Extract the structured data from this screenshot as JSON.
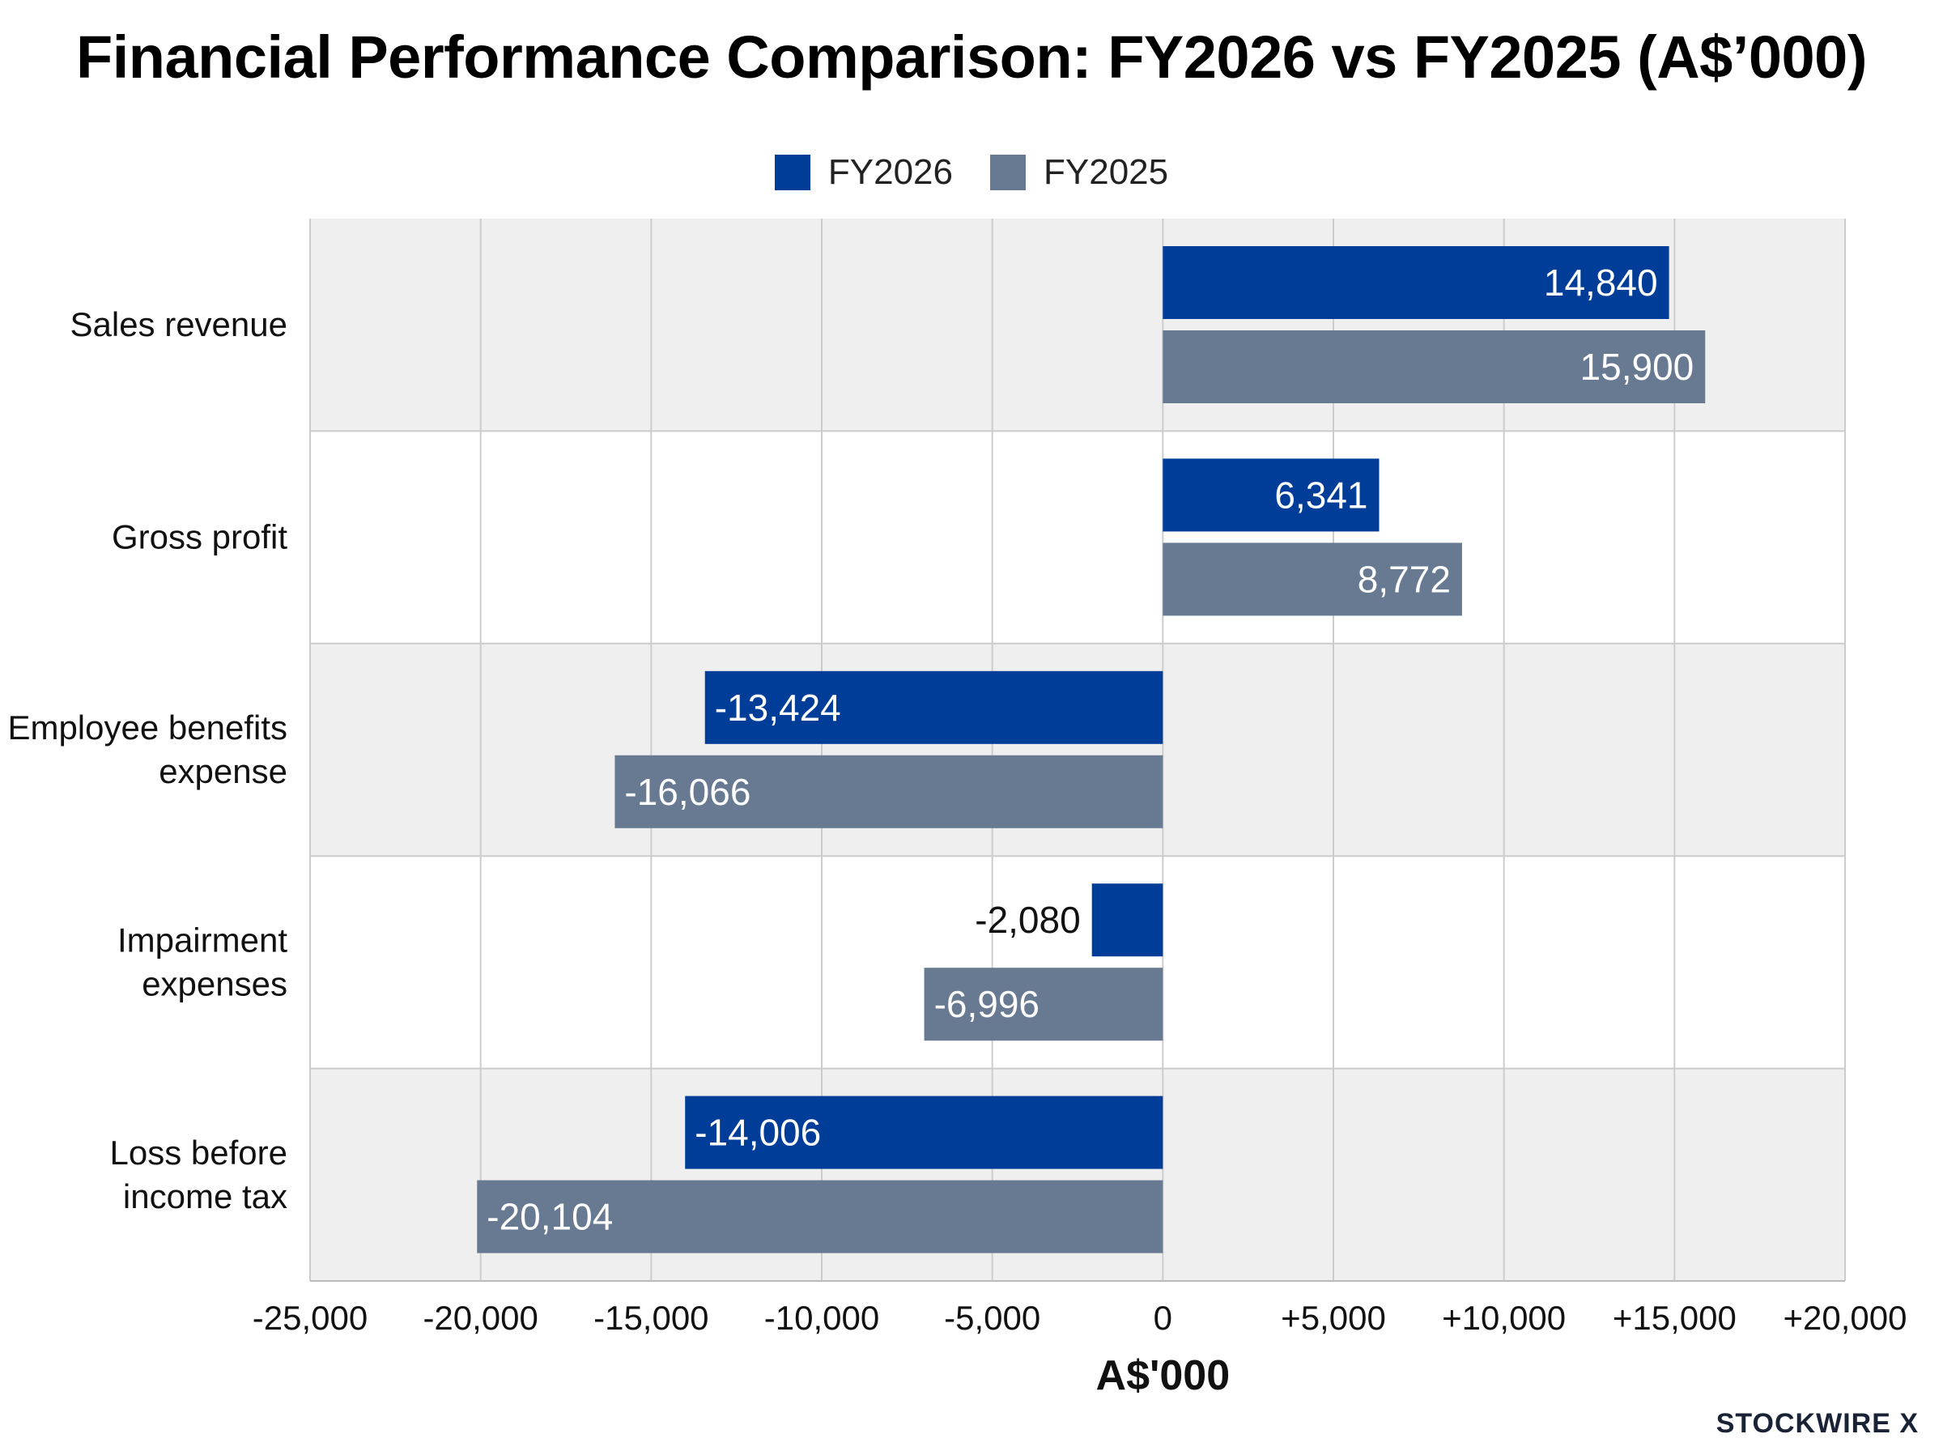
{
  "chart_data": {
    "type": "bar",
    "orientation": "horizontal",
    "title": "Financial Performance Comparison: FY2026 vs FY2025 (A$’000)",
    "xlabel": "A$'000",
    "ylabel": "",
    "xlim": [
      -25000,
      20000
    ],
    "x_ticks": [
      -25000,
      -20000,
      -15000,
      -10000,
      -5000,
      0,
      5000,
      10000,
      15000,
      20000
    ],
    "x_tick_labels": [
      "-25,000",
      "-20,000",
      "-15,000",
      "-10,000",
      "-5,000",
      "0",
      "+5,000",
      "+10,000",
      "+15,000",
      "+20,000"
    ],
    "categories": [
      [
        "Sales revenue"
      ],
      [
        "Gross profit"
      ],
      [
        "Employee benefits",
        "expense"
      ],
      [
        "Impairment",
        "expenses"
      ],
      [
        "Loss before",
        "income tax"
      ]
    ],
    "series": [
      {
        "name": "FY2026",
        "color": "#003d99",
        "values": [
          14840,
          6341,
          -13424,
          -2080,
          -14006
        ],
        "labels": [
          "14,840",
          "6,341",
          "-13,424",
          "-2,080",
          "-14,006"
        ]
      },
      {
        "name": "FY2025",
        "color": "#687a92",
        "values": [
          15900,
          8772,
          -16066,
          -6996,
          -20104
        ],
        "labels": [
          "15,900",
          "8,772",
          "-16,066",
          "-6,996",
          "-20,104"
        ]
      }
    ],
    "legend_position": "top-center",
    "grid": true
  },
  "watermark": "STOCKWIRE X"
}
